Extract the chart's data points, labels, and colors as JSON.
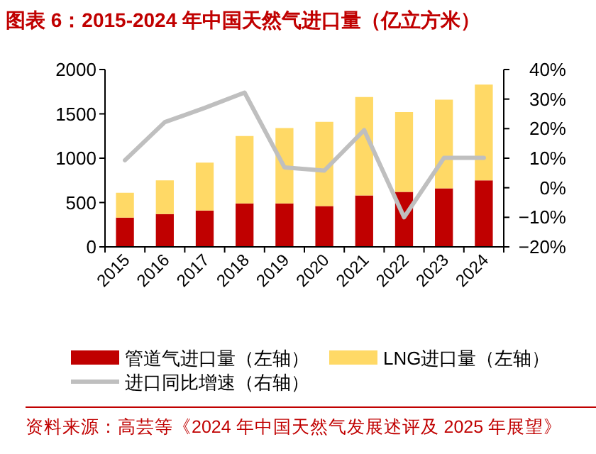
{
  "chart_data": {
    "type": "bar",
    "stacked": true,
    "title": "图表 6：2015-2024 年中国天然气进口量（亿立方米）",
    "categories": [
      "2015",
      "2016",
      "2017",
      "2018",
      "2019",
      "2020",
      "2021",
      "2022",
      "2023",
      "2024"
    ],
    "series": [
      {
        "name": "管道气进口量（左轴）",
        "color": "#c00000",
        "values": [
          330,
          370,
          410,
          490,
          490,
          460,
          580,
          620,
          660,
          750
        ]
      },
      {
        "name": "LNG进口量（左轴）",
        "color": "#ffd966",
        "values": [
          280,
          380,
          540,
          760,
          850,
          950,
          1110,
          900,
          1000,
          1080
        ]
      },
      {
        "name": "进口同比增速（右轴）",
        "type": "line",
        "axis": "y2",
        "color": "#bfbfbf",
        "values": [
          9.3,
          22.2,
          27,
          32.2,
          6.9,
          5.8,
          19.5,
          -10,
          10.1,
          10.1
        ]
      }
    ],
    "ylim": [
      0,
      2000
    ],
    "yticks": [
      0,
      500,
      1000,
      1500,
      2000
    ],
    "y2lim": [
      -20,
      40
    ],
    "y2ticks": [
      {
        "value": -20,
        "label": "−20%"
      },
      {
        "value": -10,
        "label": "−10%"
      },
      {
        "value": 0,
        "label": "0%"
      },
      {
        "value": 10,
        "label": "10%"
      },
      {
        "value": 20,
        "label": "20%"
      },
      {
        "value": 30,
        "label": "30%"
      },
      {
        "value": 40,
        "label": "40%"
      }
    ],
    "legend": "bottom",
    "annotations": [
      "资料来源：高芸等《2024 年中国天然气发展述评及 2025 年展望》"
    ]
  }
}
